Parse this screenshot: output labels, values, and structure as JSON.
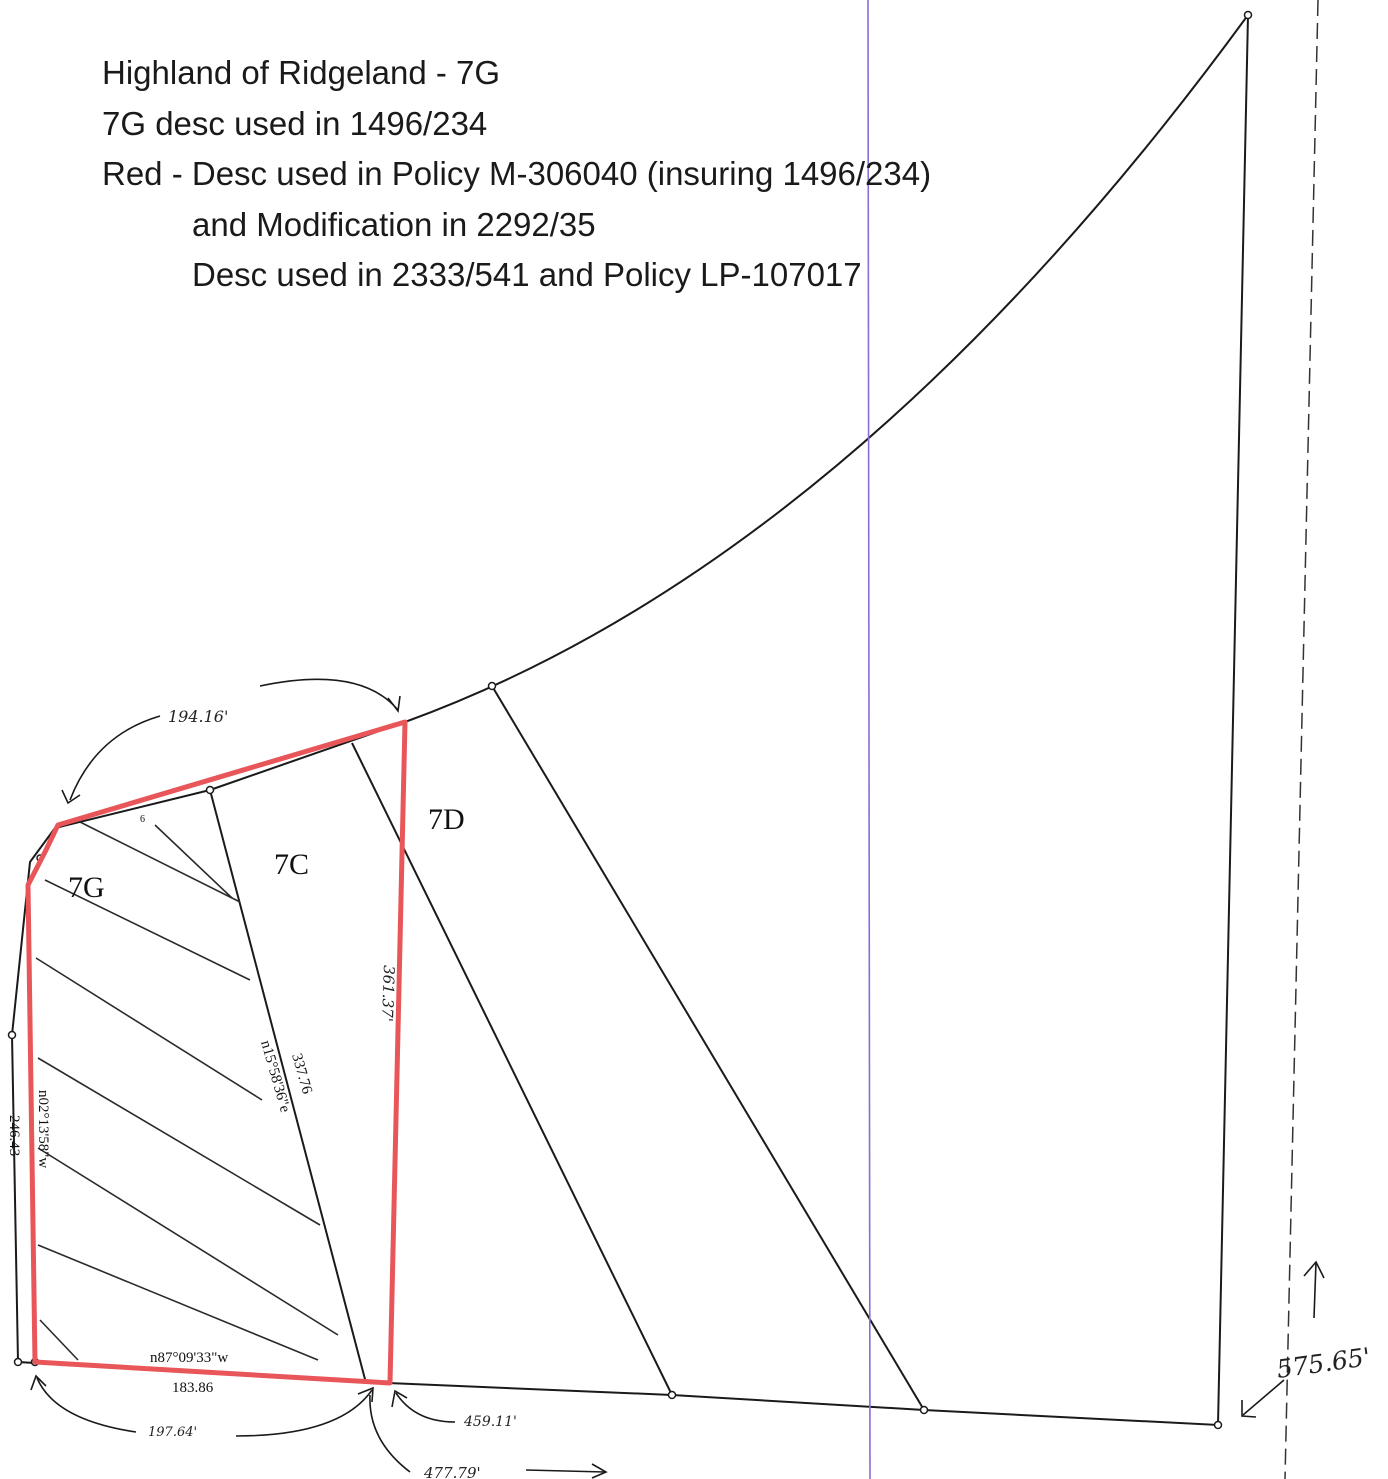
{
  "header": {
    "line1": "Highland of Ridgeland - 7G",
    "line2": "7G desc used in 1496/234",
    "line3": "Red - Desc used in Policy M-306040 (insuring 1496/234)",
    "line4": "and Modification in 2292/35",
    "line5": "Desc used in 2333/541 and Policy LP-107017"
  },
  "lots": {
    "lot_7g": "7G",
    "lot_7c": "7C",
    "lot_7d": "7D"
  },
  "measurements": {
    "west_distance": "246.43",
    "west_bearing": "n02°13'58\"w",
    "center_distance": "337.76",
    "center_bearing": "n15°58'36\"e",
    "south_bearing": "n87°09'33\"w",
    "south_distance": "183.86",
    "small_mark": "6"
  },
  "handwritten": {
    "top_arc": "194.16'",
    "east_side": "361.37'",
    "bottom_left": "197.64'",
    "bottom_right": "459.11'",
    "bottom_far": "477.79'",
    "far_right": "575.65'"
  },
  "colors": {
    "red_boundary": "#e8565a",
    "purple_guide": "#8a6bd8",
    "ink": "#1a1a1a"
  }
}
